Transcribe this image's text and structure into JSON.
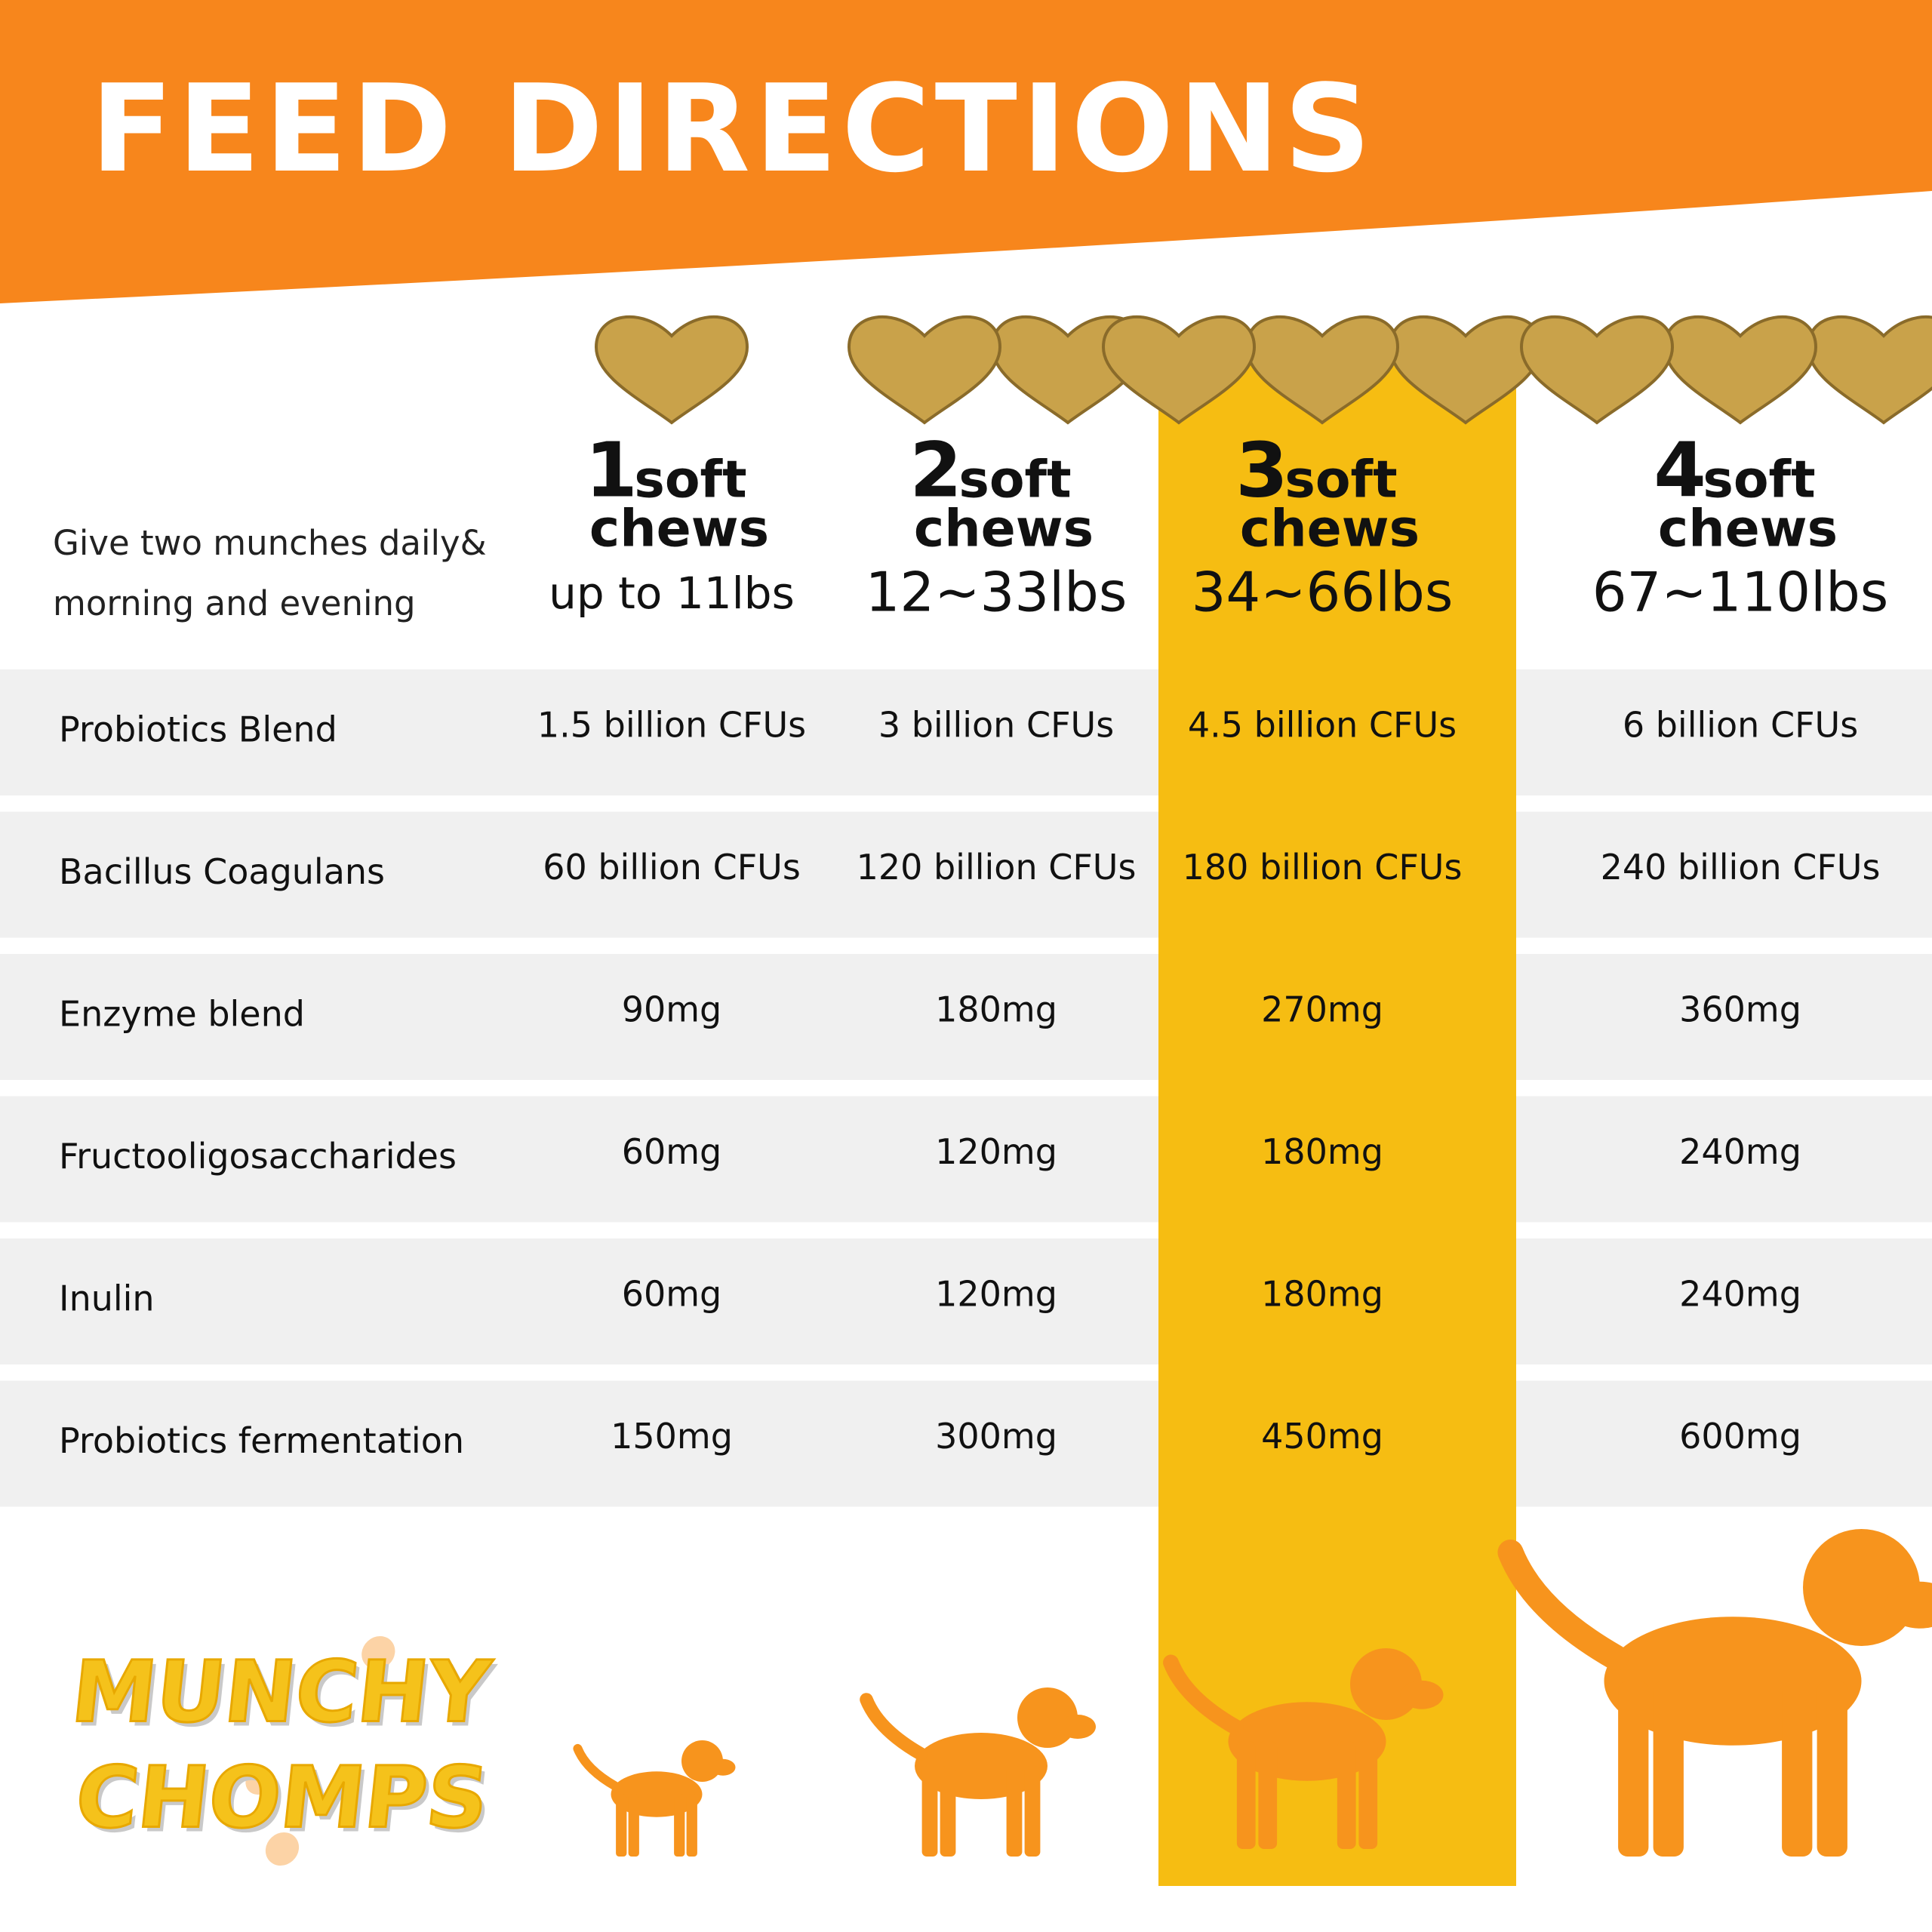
{
  "header": {
    "title": "FEED DIRECTIONS"
  },
  "intro": [
    "Give two munches daily&",
    "morning and evening"
  ],
  "columns": [
    {
      "count": "1",
      "unit": "soft",
      "chews": "chews",
      "weight": "up to 11lbs"
    },
    {
      "count": "2",
      "unit": "soft",
      "chews": "chews",
      "weight": "12~33lbs"
    },
    {
      "count": "3",
      "unit": "soft",
      "chews": "chews",
      "weight": "34~66lbs"
    },
    {
      "count": "4",
      "unit": "soft",
      "chews": "chews",
      "weight": "67~110lbs"
    }
  ],
  "rows": [
    {
      "label": "Probiotics Blend",
      "values": [
        "1.5 billion CFUs",
        "3 billion CFUs",
        "4.5 billion CFUs",
        "6 billion CFUs"
      ]
    },
    {
      "label": "Bacillus Coagulans",
      "values": [
        "60 billion CFUs",
        "120 billion CFUs",
        "180 billion CFUs",
        "240 billion CFUs"
      ]
    },
    {
      "label": "Enzyme blend",
      "values": [
        "90mg",
        "180mg",
        "270mg",
        "360mg"
      ]
    },
    {
      "label": "Fructooligosaccharides",
      "values": [
        "60mg",
        "120mg",
        "180mg",
        "240mg"
      ]
    },
    {
      "label": "Inulin",
      "values": [
        "60mg",
        "120mg",
        "180mg",
        "240mg"
      ]
    },
    {
      "label": "Probiotics fermentation",
      "values": [
        "150mg",
        "300mg",
        "450mg",
        "600mg"
      ]
    }
  ],
  "brand": [
    "MUNCHY",
    "CHOMPS"
  ]
}
